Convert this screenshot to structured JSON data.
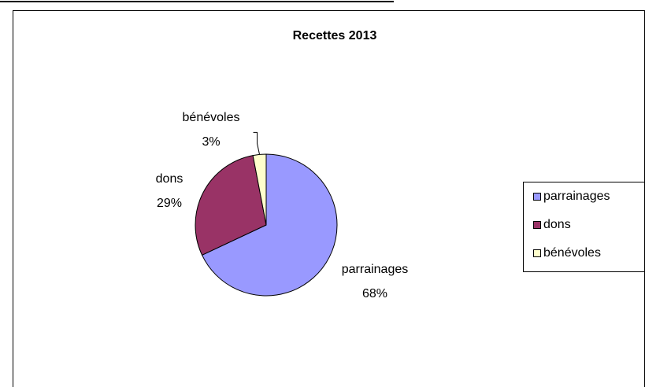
{
  "chart_data": {
    "type": "pie",
    "title": "Recettes 2013",
    "categories": [
      "parrainages",
      "dons",
      "bénévoles"
    ],
    "values": [
      68,
      29,
      3
    ],
    "value_labels": [
      "68%",
      "29%",
      "3%"
    ],
    "colors": [
      "#9999ff",
      "#993366",
      "#ffffcc"
    ],
    "legend_position": "right"
  }
}
